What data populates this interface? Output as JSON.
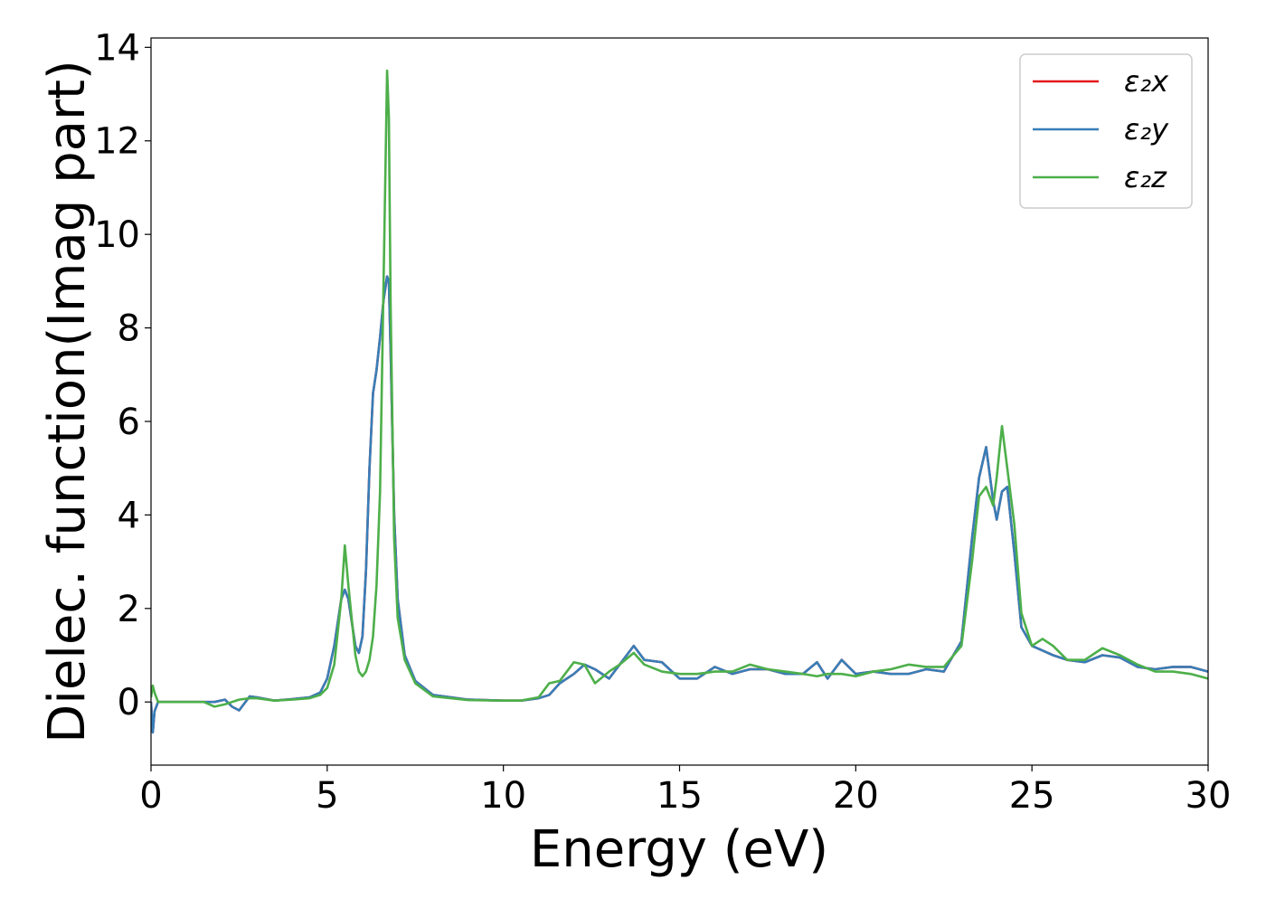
{
  "chart_data": {
    "type": "line",
    "xlabel": "Energy (eV)",
    "ylabel": "Dielec. function(Imag part)",
    "x": [
      0,
      0.05,
      0.1,
      0.2,
      0.5,
      1,
      1.5,
      1.8,
      2.1,
      2.3,
      2.5,
      2.8,
      3,
      3.5,
      4,
      4.5,
      4.8,
      5,
      5.2,
      5.4,
      5.5,
      5.6,
      5.8,
      5.9,
      6.0,
      6.1,
      6.2,
      6.3,
      6.4,
      6.5,
      6.6,
      6.7,
      6.75,
      6.8,
      6.9,
      7.0,
      7.2,
      7.5,
      8,
      9,
      10,
      10.5,
      11,
      11.3,
      11.6,
      12,
      12.3,
      12.6,
      13,
      13.3,
      13.7,
      14,
      14.5,
      15,
      15.5,
      16,
      16.5,
      17,
      17.5,
      18,
      18.5,
      18.9,
      19.2,
      19.6,
      20,
      20.5,
      21,
      21.5,
      22,
      22.5,
      23,
      23.3,
      23.5,
      23.7,
      23.9,
      24.0,
      24.15,
      24.3,
      24.5,
      24.7,
      25,
      25.3,
      25.6,
      26,
      26.5,
      27,
      27.5,
      28,
      28.5,
      29,
      29.5,
      30
    ],
    "series": [
      {
        "name": "ε₂x",
        "color": "#e41a1c",
        "values": [
          0,
          -0.65,
          -0.2,
          0,
          0,
          0,
          0,
          0,
          0.05,
          -0.1,
          -0.18,
          0.12,
          0.1,
          0.03,
          0.06,
          0.1,
          0.2,
          0.5,
          1.2,
          2.2,
          2.4,
          2.2,
          1.2,
          1.05,
          1.4,
          2.8,
          5.0,
          6.6,
          7.1,
          7.8,
          8.6,
          9.1,
          9.0,
          7.5,
          4.0,
          2.2,
          1.0,
          0.45,
          0.15,
          0.05,
          0.03,
          0.03,
          0.08,
          0.15,
          0.4,
          0.6,
          0.8,
          0.7,
          0.5,
          0.8,
          1.2,
          0.9,
          0.85,
          0.5,
          0.5,
          0.75,
          0.6,
          0.7,
          0.7,
          0.6,
          0.6,
          0.85,
          0.5,
          0.9,
          0.6,
          0.65,
          0.6,
          0.6,
          0.7,
          0.65,
          1.3,
          3.5,
          4.8,
          5.45,
          4.3,
          3.9,
          4.5,
          4.6,
          3.2,
          1.6,
          1.2,
          1.1,
          1.0,
          0.9,
          0.85,
          1.0,
          0.95,
          0.75,
          0.7,
          0.75,
          0.75,
          0.65
        ]
      },
      {
        "name": "ε₂y",
        "color": "#377eb8",
        "values": [
          0,
          -0.65,
          -0.2,
          0,
          0,
          0,
          0,
          0,
          0.05,
          -0.1,
          -0.18,
          0.12,
          0.1,
          0.03,
          0.06,
          0.1,
          0.2,
          0.5,
          1.2,
          2.2,
          2.4,
          2.2,
          1.2,
          1.05,
          1.4,
          2.8,
          5.0,
          6.6,
          7.1,
          7.8,
          8.6,
          9.1,
          9.0,
          7.5,
          4.0,
          2.2,
          1.0,
          0.45,
          0.15,
          0.05,
          0.03,
          0.03,
          0.08,
          0.15,
          0.4,
          0.6,
          0.8,
          0.7,
          0.5,
          0.8,
          1.2,
          0.9,
          0.85,
          0.5,
          0.5,
          0.75,
          0.6,
          0.7,
          0.7,
          0.6,
          0.6,
          0.85,
          0.5,
          0.9,
          0.6,
          0.65,
          0.6,
          0.6,
          0.7,
          0.65,
          1.3,
          3.5,
          4.8,
          5.45,
          4.3,
          3.9,
          4.5,
          4.6,
          3.2,
          1.6,
          1.2,
          1.1,
          1.0,
          0.9,
          0.85,
          1.0,
          0.95,
          0.75,
          0.7,
          0.75,
          0.75,
          0.65
        ]
      },
      {
        "name": "ε₂z",
        "color": "#4daf4a",
        "values": [
          0.1,
          0.35,
          0.2,
          0,
          0,
          0,
          0,
          -0.1,
          -0.05,
          0,
          0.05,
          0.08,
          0.08,
          0.03,
          0.05,
          0.08,
          0.15,
          0.3,
          0.8,
          2.2,
          3.35,
          2.5,
          1.0,
          0.65,
          0.55,
          0.65,
          0.9,
          1.4,
          2.5,
          4.5,
          9.0,
          13.5,
          12.5,
          8.5,
          3.5,
          1.8,
          0.9,
          0.4,
          0.12,
          0.04,
          0.03,
          0.03,
          0.1,
          0.4,
          0.45,
          0.85,
          0.8,
          0.4,
          0.65,
          0.8,
          1.05,
          0.8,
          0.65,
          0.6,
          0.6,
          0.65,
          0.65,
          0.8,
          0.7,
          0.65,
          0.6,
          0.55,
          0.6,
          0.6,
          0.55,
          0.65,
          0.7,
          0.8,
          0.75,
          0.75,
          1.2,
          3.0,
          4.4,
          4.6,
          4.2,
          4.8,
          5.9,
          5.0,
          3.8,
          1.9,
          1.2,
          1.35,
          1.2,
          0.9,
          0.9,
          1.15,
          1.0,
          0.8,
          0.65,
          0.65,
          0.6,
          0.5
        ]
      }
    ],
    "xlim": [
      0,
      30
    ],
    "xticks": [
      0,
      5,
      10,
      15,
      20,
      25,
      30
    ],
    "ylim": [
      -1.35,
      14.2
    ],
    "yticks": [
      0,
      2,
      4,
      6,
      8,
      10,
      12,
      14
    ],
    "grid": false,
    "legend": "upper right"
  }
}
